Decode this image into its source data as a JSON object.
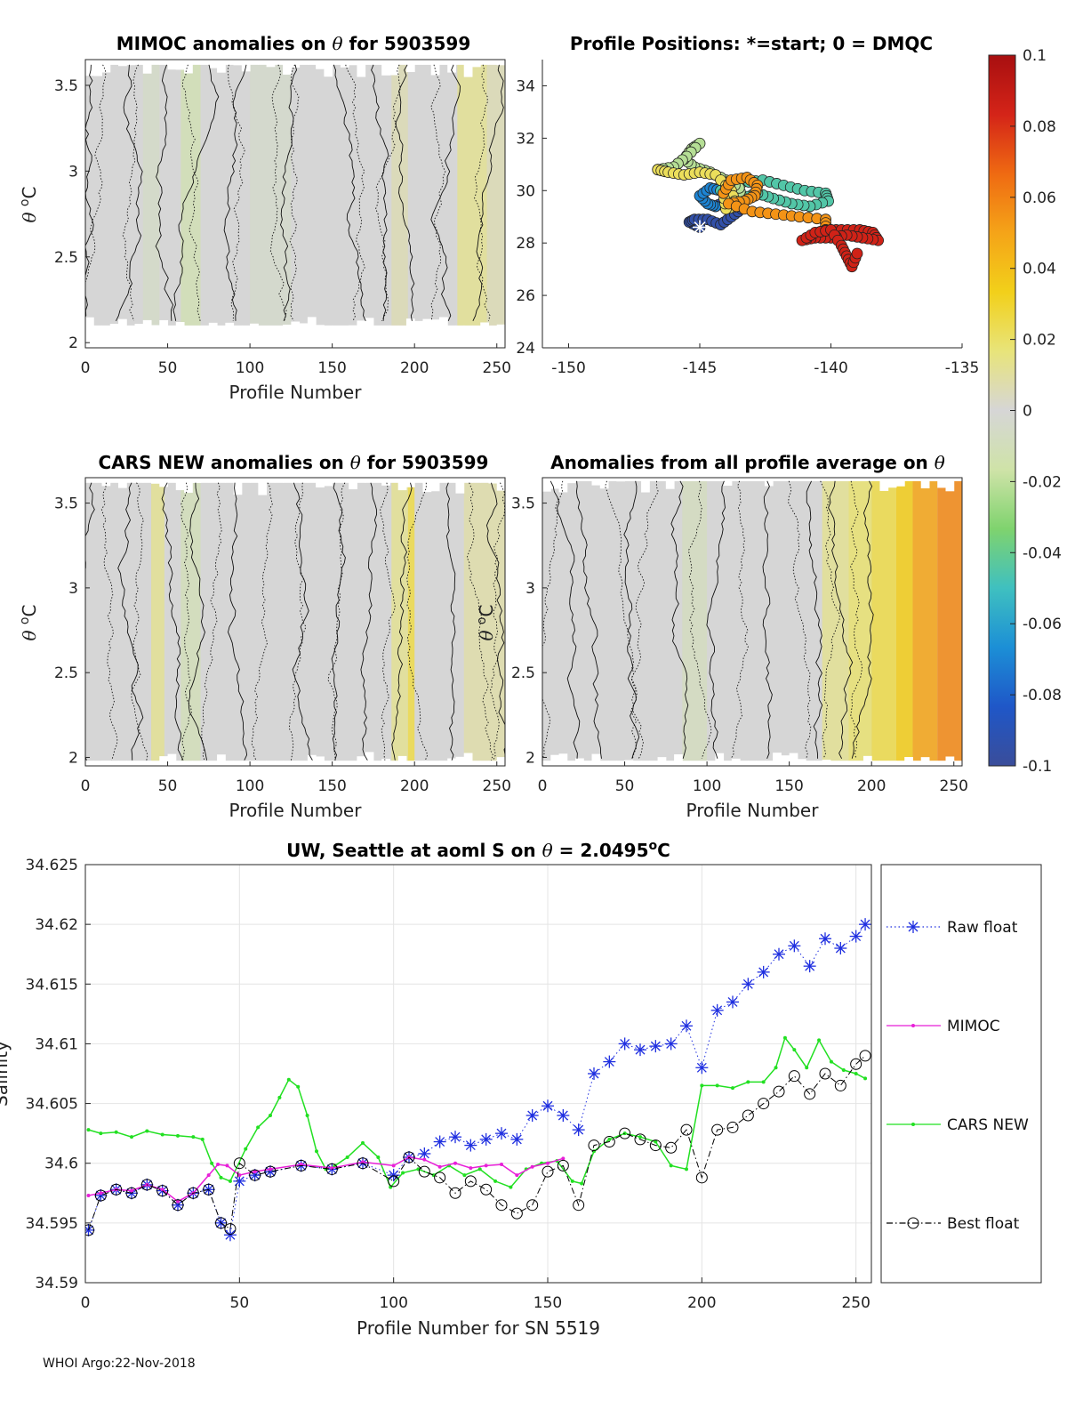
{
  "footer": "WHOI Argo:22-Nov-2018",
  "colorbar": {
    "ticks": [
      "0.1",
      "0.08",
      "0.06",
      "0.04",
      "0.02",
      "0",
      "-0.02",
      "-0.04",
      "-0.06",
      "-0.08",
      "-0.1"
    ],
    "min": -0.1,
    "max": 0.1,
    "colors": [
      "#3a4d9a",
      "#1f57c8",
      "#1c8fd6",
      "#3fc0c0",
      "#7fd36e",
      "#cfe3a8",
      "#d6d6d6",
      "#e8e47a",
      "#f2d01a",
      "#f5a418",
      "#ef6a12",
      "#d42418",
      "#a80f10"
    ]
  },
  "chart_data": [
    {
      "id": "mimoc",
      "type": "heatmap",
      "title_main": "MIMOC anomalies on ",
      "title_sym": "θ",
      "title_tail": "  for 5903599",
      "xlabel": "Profile Number",
      "ylabel_sym": "θ",
      "ylabel_unit": "C",
      "ylabel_sup": "o",
      "xlim": [
        0,
        255
      ],
      "ylim": [
        1.97,
        3.65
      ],
      "xticks": [
        "0",
        "50",
        "100",
        "150",
        "200",
        "250"
      ],
      "yticks": [
        "2",
        "2.5",
        "3",
        "3.5"
      ],
      "data_top": 3.62,
      "data_bottom": 2.1,
      "bands": [
        {
          "x0": 35,
          "x1": 45,
          "value": -0.005
        },
        {
          "x0": 58,
          "x1": 70,
          "value": -0.012
        },
        {
          "x0": 100,
          "x1": 125,
          "value": -0.004
        },
        {
          "x0": 186,
          "x1": 196,
          "value": 0.006
        },
        {
          "x0": 226,
          "x1": 244,
          "value": 0.012
        },
        {
          "x0": 244,
          "x1": 255,
          "value": 0.006
        }
      ],
      "contour_x": [
        4,
        10,
        25,
        33,
        48,
        64,
        74,
        86,
        97,
        118,
        126,
        128,
        152,
        158,
        176,
        189,
        197,
        210,
        222,
        243,
        250
      ]
    },
    {
      "id": "positions",
      "type": "scatter",
      "title": "Profile Positions: *=start; 0 = DMQC",
      "xlim": [
        -151,
        -135
      ],
      "ylim": [
        24,
        35
      ],
      "xticks": [
        "-150",
        "-145",
        "-140",
        "-135"
      ],
      "yticks": [
        "24",
        "26",
        "28",
        "30",
        "32",
        "34"
      ],
      "start": {
        "lon": -145.0,
        "lat": 28.6
      },
      "tracks": [
        {
          "color_value": -0.095,
          "points": [
            [
              -145.0,
              28.6
            ],
            [
              -145.4,
              28.8
            ],
            [
              -145.2,
              28.9
            ],
            [
              -144.7,
              28.9
            ],
            [
              -144.2,
              28.7
            ],
            [
              -143.8,
              29.0
            ],
            [
              -143.4,
              29.3
            ],
            [
              -143.5,
              29.6
            ],
            [
              -144.0,
              29.6
            ],
            [
              -144.4,
              29.4
            ]
          ]
        },
        {
          "color_value": -0.07,
          "points": [
            [
              -144.4,
              29.4
            ],
            [
              -144.7,
              29.5
            ],
            [
              -145.0,
              29.8
            ],
            [
              -144.6,
              30.1
            ],
            [
              -144.2,
              30.0
            ]
          ]
        },
        {
          "color_value": -0.045,
          "points": [
            [
              -144.2,
              30.0
            ],
            [
              -143.4,
              30.3
            ],
            [
              -142.6,
              30.4
            ],
            [
              -141.8,
              30.2
            ],
            [
              -141.0,
              30.0
            ],
            [
              -140.2,
              29.9
            ],
            [
              -140.1,
              29.6
            ],
            [
              -140.8,
              29.4
            ],
            [
              -141.5,
              29.5
            ],
            [
              -142.2,
              29.7
            ],
            [
              -142.8,
              29.9
            ],
            [
              -143.4,
              29.7
            ]
          ]
        },
        {
          "color_value": -0.022,
          "points": [
            [
              -143.4,
              29.7
            ],
            [
              -143.5,
              30.1
            ],
            [
              -144.0,
              30.4
            ],
            [
              -144.6,
              30.7
            ],
            [
              -145.2,
              30.9
            ],
            [
              -145.6,
              31.2
            ],
            [
              -145.3,
              31.6
            ],
            [
              -145.0,
              31.8
            ],
            [
              -145.5,
              31.3
            ],
            [
              -146.0,
              30.9
            ],
            [
              -146.6,
              30.8
            ]
          ]
        },
        {
          "color_value": 0.022,
          "points": [
            [
              -146.6,
              30.8
            ],
            [
              -146.2,
              30.7
            ],
            [
              -145.6,
              30.6
            ],
            [
              -145.0,
              30.7
            ],
            [
              -144.4,
              30.6
            ],
            [
              -143.8,
              30.0
            ],
            [
              -143.6,
              29.4
            ],
            [
              -144.0,
              29.3
            ],
            [
              -144.1,
              29.9
            ]
          ]
        },
        {
          "color_value": 0.055,
          "points": [
            [
              -144.1,
              29.9
            ],
            [
              -143.8,
              30.4
            ],
            [
              -143.2,
              30.5
            ],
            [
              -142.8,
              30.2
            ],
            [
              -142.9,
              29.8
            ],
            [
              -143.3,
              29.6
            ],
            [
              -143.9,
              29.5
            ],
            [
              -143.0,
              29.2
            ],
            [
              -142.1,
              29.1
            ],
            [
              -141.2,
              29.0
            ],
            [
              -140.2,
              28.9
            ],
            [
              -140.2,
              28.5
            ]
          ]
        },
        {
          "color_value": 0.085,
          "points": [
            [
              -140.2,
              28.5
            ],
            [
              -139.6,
              28.5
            ],
            [
              -138.9,
              28.5
            ],
            [
              -138.4,
              28.4
            ],
            [
              -138.2,
              28.1
            ],
            [
              -138.8,
              28.2
            ],
            [
              -139.4,
              28.3
            ],
            [
              -140.0,
              28.2
            ],
            [
              -140.6,
              28.2
            ],
            [
              -141.1,
              28.1
            ],
            [
              -140.6,
              28.4
            ],
            [
              -140.0,
              28.5
            ],
            [
              -139.6,
              27.9
            ],
            [
              -139.4,
              27.5
            ],
            [
              -139.2,
              27.1
            ],
            [
              -139.0,
              27.6
            ]
          ]
        }
      ]
    },
    {
      "id": "cars",
      "type": "heatmap",
      "title_main": "CARS NEW anomalies on ",
      "title_sym": "θ",
      "title_tail": " for 5903599",
      "xlabel": "Profile Number",
      "ylabel_sym": "θ",
      "ylabel_unit": "C",
      "ylabel_sup": "o",
      "xlim": [
        0,
        255
      ],
      "ylim": [
        1.95,
        3.65
      ],
      "xticks": [
        "0",
        "50",
        "100",
        "150",
        "200",
        "250"
      ],
      "yticks": [
        "2",
        "2.5",
        "3",
        "3.5"
      ],
      "data_top": 3.62,
      "data_bottom": 1.98,
      "bands": [
        {
          "x0": 40,
          "x1": 48,
          "value": 0.012
        },
        {
          "x0": 58,
          "x1": 70,
          "value": -0.01
        },
        {
          "x0": 186,
          "x1": 196,
          "value": 0.012
        },
        {
          "x0": 196,
          "x1": 200,
          "value": 0.025
        },
        {
          "x0": 230,
          "x1": 255,
          "value": 0.008
        }
      ],
      "contour_x": [
        4,
        11,
        27,
        33,
        48,
        62,
        68,
        80,
        92,
        112,
        128,
        132,
        150,
        158,
        174,
        183,
        197,
        206,
        222,
        232,
        245,
        251
      ]
    },
    {
      "id": "allprof",
      "type": "heatmap",
      "title_main": "Anomalies from all profile average on ",
      "title_sym": "θ",
      "title_tail": "",
      "xlabel": "Profile Number",
      "ylabel_sym": "θ",
      "ylabel_unit": "C",
      "ylabel_sup": "o",
      "xlim": [
        0,
        255
      ],
      "ylim": [
        1.95,
        3.65
      ],
      "xticks": [
        "0",
        "50",
        "100",
        "150",
        "200",
        "250"
      ],
      "yticks": [
        "2",
        "2.5",
        "3",
        "3.5"
      ],
      "data_top": 3.63,
      "data_bottom": 1.98,
      "bands": [
        {
          "x0": 85,
          "x1": 100,
          "value": -0.008
        },
        {
          "x0": 170,
          "x1": 186,
          "value": 0.012
        },
        {
          "x0": 186,
          "x1": 200,
          "value": 0.018
        },
        {
          "x0": 200,
          "x1": 215,
          "value": 0.025
        },
        {
          "x0": 215,
          "x1": 225,
          "value": 0.035
        },
        {
          "x0": 225,
          "x1": 240,
          "value": 0.05
        },
        {
          "x0": 240,
          "x1": 255,
          "value": 0.058
        }
      ],
      "contour_x": [
        5,
        12,
        22,
        38,
        55,
        68,
        84,
        95,
        110,
        120,
        136,
        150,
        162,
        170,
        178,
        186,
        199
      ]
    },
    {
      "id": "salinity",
      "type": "line",
      "title_main": "UW, Seattle at aoml S on ",
      "title_sym": "θ",
      "title_tail": " = 2.0495",
      "title_sup": "o",
      "title_unit": "C",
      "xlabel": "Profile Number for SN 5519",
      "ylabel": "Salinity",
      "xlim": [
        0,
        255
      ],
      "ylim": [
        34.59,
        34.625
      ],
      "xticks": [
        "0",
        "50",
        "100",
        "150",
        "200",
        "250"
      ],
      "yticks": [
        "34.59",
        "34.595",
        "34.6",
        "34.605",
        "34.61",
        "34.615",
        "34.62",
        "34.625"
      ],
      "series": [
        {
          "name": "Raw float",
          "color": "#1f2fe0",
          "marker": "star",
          "linestyle": "dotted",
          "x": [
            1,
            5,
            10,
            15,
            20,
            25,
            30,
            35,
            40,
            44,
            47,
            50,
            55,
            60,
            70,
            80,
            90,
            100,
            105,
            110,
            115,
            120,
            125,
            130,
            135,
            140,
            145,
            150,
            155,
            160,
            165,
            170,
            175,
            180,
            185,
            190,
            195,
            200,
            205,
            210,
            215,
            220,
            225,
            230,
            235,
            240,
            245,
            250,
            253
          ],
          "values": [
            34.5944,
            34.5973,
            34.5978,
            34.5975,
            34.5982,
            34.5977,
            34.5965,
            34.5975,
            34.5978,
            34.595,
            34.594,
            34.5985,
            34.599,
            34.5993,
            34.5998,
            34.5995,
            34.6,
            34.599,
            34.6005,
            34.6008,
            34.6018,
            34.6022,
            34.6015,
            34.602,
            34.6025,
            34.602,
            34.604,
            34.6048,
            34.604,
            34.6028,
            34.6075,
            34.6085,
            34.61,
            34.6095,
            34.6098,
            34.61,
            34.6115,
            34.608,
            34.6128,
            34.6135,
            34.615,
            34.616,
            34.6175,
            34.6182,
            34.6165,
            34.6188,
            34.618,
            34.619,
            34.62
          ]
        },
        {
          "name": "MIMOC",
          "color": "#e81fd8",
          "marker": "dot",
          "linestyle": "solid",
          "x": [
            1,
            5,
            10,
            15,
            20,
            25,
            30,
            35,
            40,
            43,
            46,
            50,
            55,
            60,
            70,
            80,
            90,
            100,
            105,
            110,
            115,
            120,
            125,
            130,
            135,
            140,
            145,
            150,
            155
          ],
          "values": [
            34.5973,
            34.5975,
            34.5978,
            34.5977,
            34.5982,
            34.5978,
            34.5968,
            34.5975,
            34.599,
            34.5999,
            34.5998,
            34.599,
            34.5993,
            34.5995,
            34.5999,
            34.5996,
            34.6001,
            34.5998,
            34.6005,
            34.6003,
            34.5997,
            34.6,
            34.5996,
            34.5998,
            34.5999,
            34.599,
            34.5997,
            34.6,
            34.6004
          ]
        },
        {
          "name": "CARS NEW",
          "color": "#22e022",
          "marker": "dot",
          "linestyle": "solid",
          "x": [
            1,
            5,
            10,
            15,
            20,
            25,
            30,
            35,
            38,
            41,
            44,
            47,
            52,
            56,
            60,
            63,
            66,
            69,
            72,
            75,
            78,
            81,
            85,
            90,
            95,
            99,
            103,
            108,
            113,
            118,
            123,
            128,
            133,
            138,
            143,
            148,
            153,
            158,
            161,
            165,
            170,
            175,
            180,
            185,
            190,
            195,
            200,
            205,
            210,
            215,
            220,
            224,
            227,
            230,
            234,
            238,
            242,
            246,
            250,
            253
          ],
          "values": [
            34.6028,
            34.6025,
            34.6026,
            34.6022,
            34.6027,
            34.6024,
            34.6023,
            34.6022,
            34.602,
            34.6,
            34.5988,
            34.5985,
            34.6012,
            34.603,
            34.604,
            34.6055,
            34.607,
            34.6064,
            34.604,
            34.601,
            34.5995,
            34.5998,
            34.6005,
            34.6017,
            34.6005,
            34.598,
            34.5992,
            34.5995,
            34.599,
            34.5998,
            34.599,
            34.5995,
            34.5985,
            34.598,
            34.5995,
            34.6,
            34.6002,
            34.5985,
            34.5983,
            34.601,
            34.602,
            34.6025,
            34.6022,
            34.6018,
            34.5998,
            34.5995,
            34.6065,
            34.6065,
            34.6063,
            34.6068,
            34.6068,
            34.608,
            34.6105,
            34.6095,
            34.608,
            34.6103,
            34.6085,
            34.6078,
            34.6075,
            34.6071
          ]
        },
        {
          "name": "Best float",
          "color": "#000000",
          "marker": "circle",
          "linestyle": "dashdot",
          "x": [
            1,
            5,
            10,
            15,
            20,
            25,
            30,
            35,
            40,
            44,
            47,
            50,
            55,
            60,
            70,
            80,
            90,
            100,
            105,
            110,
            115,
            120,
            125,
            130,
            135,
            140,
            145,
            150,
            155,
            160,
            165,
            170,
            175,
            180,
            185,
            190,
            195,
            200,
            205,
            210,
            215,
            220,
            225,
            230,
            235,
            240,
            245,
            250,
            253
          ],
          "values": [
            34.5944,
            34.5973,
            34.5978,
            34.5975,
            34.5982,
            34.5977,
            34.5965,
            34.5975,
            34.5978,
            34.595,
            34.5945,
            34.6,
            34.599,
            34.5993,
            34.5998,
            34.5995,
            34.6,
            34.5985,
            34.6005,
            34.5993,
            34.5988,
            34.5975,
            34.5985,
            34.5978,
            34.5965,
            34.5958,
            34.5965,
            34.5993,
            34.5998,
            34.5965,
            34.6015,
            34.6018,
            34.6025,
            34.602,
            34.6015,
            34.6013,
            34.6028,
            34.5988,
            34.6028,
            34.603,
            34.604,
            34.605,
            34.606,
            34.6073,
            34.6058,
            34.6075,
            34.6065,
            34.6083,
            34.609
          ]
        }
      ]
    }
  ]
}
